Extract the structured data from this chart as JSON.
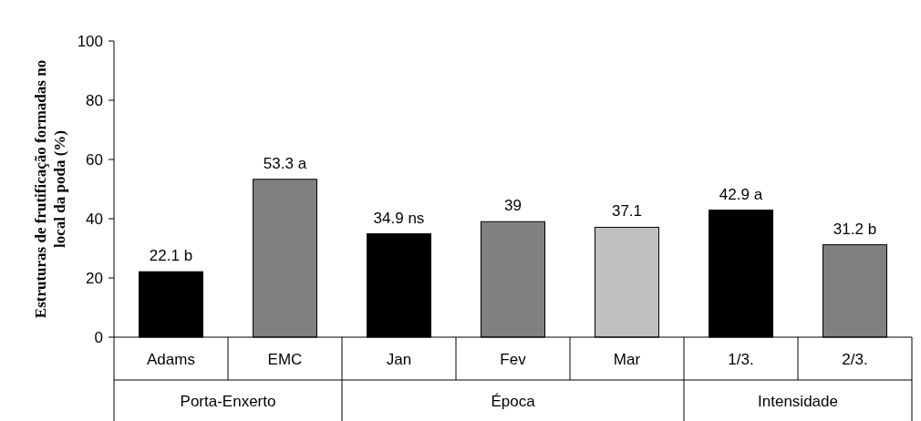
{
  "chart_data": {
    "type": "bar",
    "ylabel": "Estruturas de frutificação formadas no local da poda (%)",
    "categories": [
      "Adams",
      "EMC",
      "Jan",
      "Fev",
      "Mar",
      "1/3.",
      "2/3."
    ],
    "values": [
      22.1,
      53.3,
      34.9,
      39,
      37.1,
      42.9,
      31.2
    ],
    "colors": [
      "#000000",
      "#808080",
      "#000000",
      "#808080",
      "#c0c0c0",
      "#000000",
      "#808080"
    ],
    "value_labels": [
      "22.1 b",
      "53.3 a",
      "34.9 ns",
      "39",
      "37.1",
      "42.9 a",
      "31.2 b"
    ],
    "annotations": [
      "Porta-Enxerto",
      "Época",
      "Intensidade"
    ],
    "ylim": [
      0,
      100
    ],
    "yticks": [
      0,
      20,
      40,
      60,
      80,
      100
    ],
    "grid": false
  }
}
